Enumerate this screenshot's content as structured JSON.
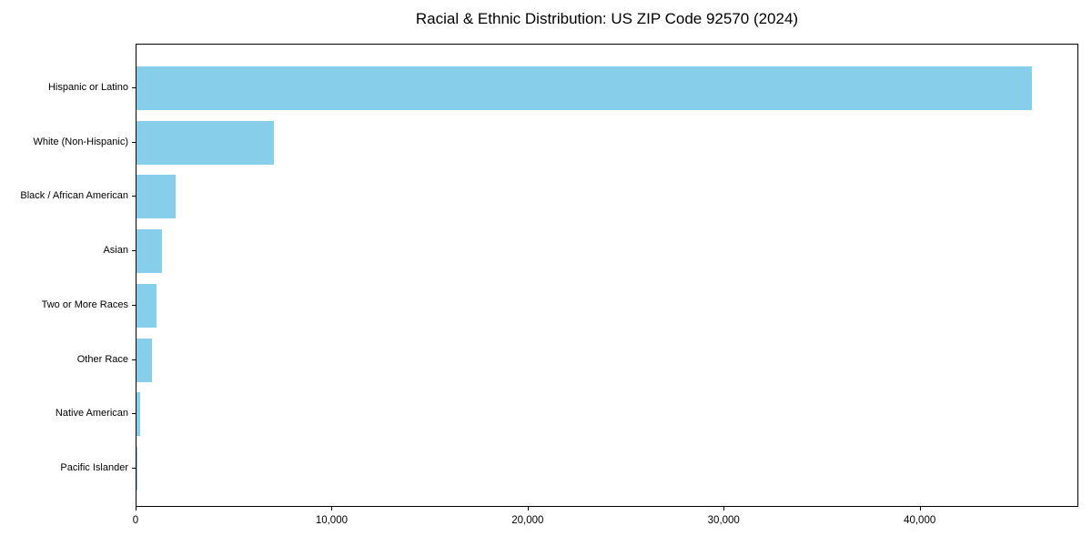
{
  "chart_data": {
    "type": "bar",
    "orientation": "horizontal",
    "title": "Racial & Ethnic Distribution: US ZIP Code 92570 (2024)",
    "categories": [
      "Hispanic or Latino",
      "White (Non-Hispanic)",
      "Black / African American",
      "Asian",
      "Two or More Races",
      "Other Race",
      "Native American",
      "Pacific Islander"
    ],
    "values": [
      45700,
      7000,
      2000,
      1300,
      1000,
      800,
      200,
      30
    ],
    "xlabel": "",
    "ylabel": "",
    "xlim": [
      0,
      48000
    ],
    "xticks": [
      0,
      10000,
      20000,
      30000,
      40000
    ],
    "xtick_labels": [
      "0",
      "10,000",
      "20,000",
      "30,000",
      "40,000"
    ],
    "grid": false,
    "legend_position": "none",
    "bar_color": "#87CEEB",
    "axis_color": "#000000",
    "text_color": "#000000",
    "background_color": "#FFFFFF"
  }
}
